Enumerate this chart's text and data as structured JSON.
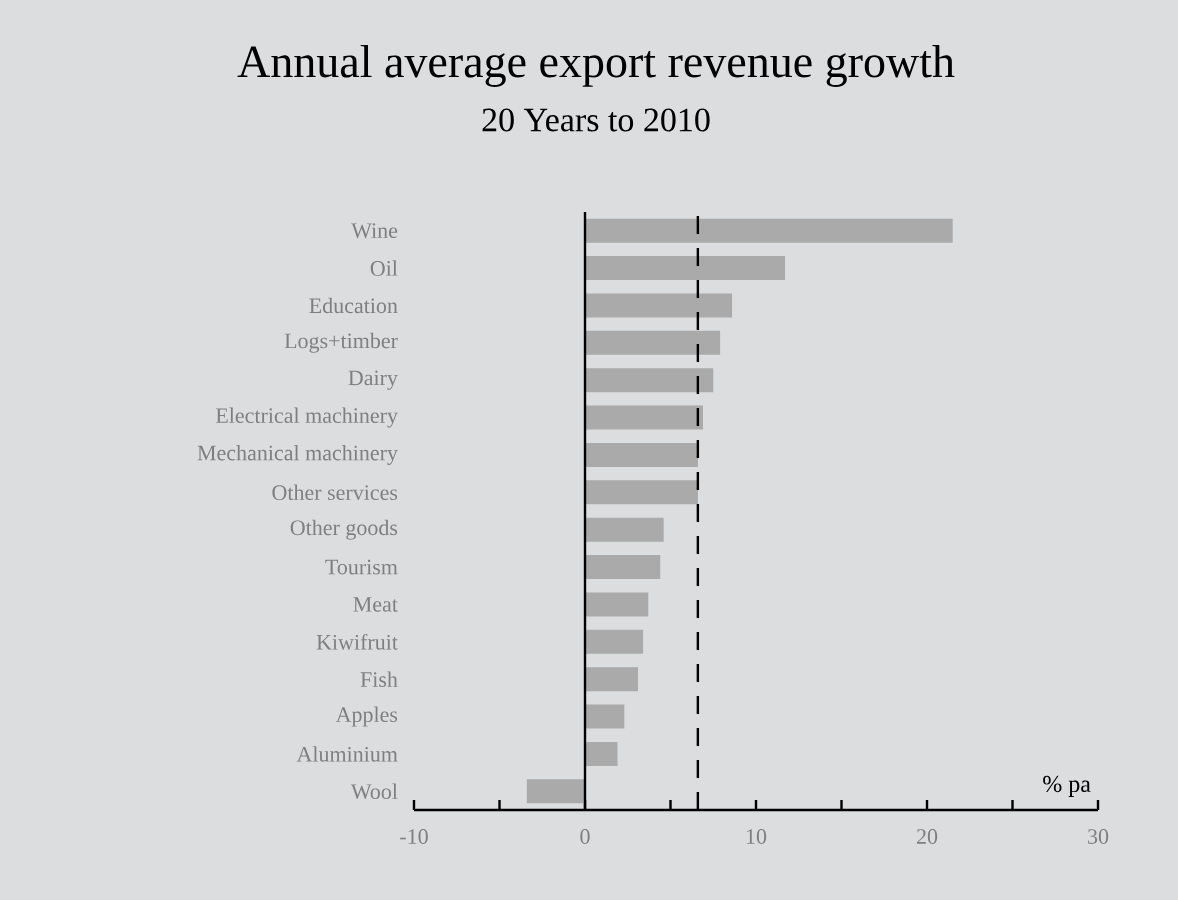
{
  "chart_data": {
    "type": "bar",
    "orientation": "horizontal",
    "title": "Annual average export revenue growth",
    "subtitle": "20 Years to 2010",
    "xlabel": "% pa",
    "categories": [
      "Wine",
      "Oil",
      "Education",
      "Logs+timber",
      "Dairy",
      "Electrical machinery",
      "Mechanical machinery",
      "Other services",
      "Other goods",
      "Tourism",
      "Meat",
      "Kiwifruit",
      "Fish",
      "Apples",
      "Aluminium",
      "Wool"
    ],
    "values": [
      21.5,
      11.7,
      8.6,
      7.9,
      7.5,
      6.9,
      6.6,
      6.6,
      4.6,
      4.4,
      3.7,
      3.4,
      3.1,
      2.3,
      1.9,
      -3.4
    ],
    "color": "#a9aaa9",
    "xlim": [
      -10,
      30
    ],
    "xticks": [
      -10,
      {
        "value": -5,
        "label": null
      },
      0,
      {
        "value": 5,
        "label": null
      },
      10,
      {
        "value": 15,
        "label": null
      },
      20,
      {
        "value": 25,
        "label": null
      },
      30
    ],
    "ref_lines": [
      {
        "axis": "x",
        "value": 6.6,
        "line_style": "dashed",
        "color": "#000000"
      }
    ]
  }
}
